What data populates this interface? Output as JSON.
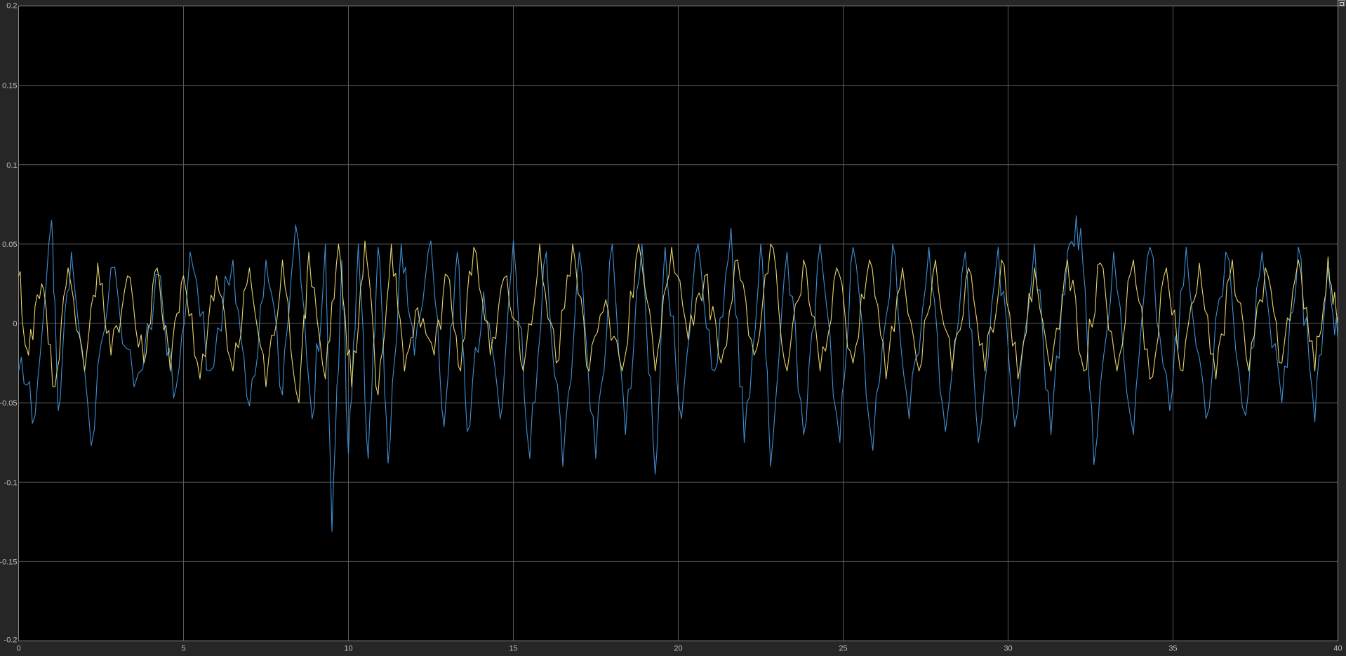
{
  "chart_data": {
    "type": "line",
    "title": "",
    "xlabel": "",
    "ylabel": "",
    "xlim": [
      0,
      40
    ],
    "ylim": [
      -0.2,
      0.2
    ],
    "x_ticks": [
      "0",
      "5",
      "10",
      "15",
      "20",
      "25",
      "30",
      "35",
      "40"
    ],
    "y_ticks": [
      "0.2",
      "0.15",
      "0.1",
      "0.05",
      "0",
      "-0.05",
      "-0.1",
      "-0.15",
      "-0.2"
    ],
    "grid": true,
    "background": "#000000",
    "series": [
      {
        "color": "#3e8fd4",
        "x": [
          0,
          0.5,
          1.0,
          1.2,
          1.6,
          2.2,
          2.8,
          3.5,
          4.3,
          4.7,
          5.2,
          5.8,
          6.5,
          7.0,
          7.5,
          8.0,
          8.4,
          8.9,
          9.3,
          9.5,
          9.8,
          10.0,
          10.3,
          10.6,
          10.9,
          11.2,
          11.6,
          12.0,
          12.5,
          12.9,
          13.3,
          13.6,
          14.1,
          14.6,
          15.0,
          15.5,
          16.0,
          16.5,
          17.0,
          17.5,
          18.0,
          18.4,
          18.9,
          19.3,
          19.6,
          20.1,
          20.6,
          21.1,
          21.6,
          22.0,
          22.5,
          22.8,
          23.3,
          23.8,
          24.3,
          24.9,
          25.3,
          25.9,
          26.5,
          27.0,
          27.6,
          28.1,
          28.7,
          29.1,
          29.7,
          30.2,
          30.8,
          31.3,
          31.8,
          32.2,
          32.6,
          33.2,
          33.8,
          34.3,
          34.9,
          35.4,
          36.0,
          36.6,
          37.2,
          37.7,
          38.3,
          38.8,
          39.3,
          39.7,
          40.0
        ],
        "y": [
          -0.03,
          -0.058,
          0.065,
          -0.055,
          0.045,
          -0.077,
          0.035,
          -0.04,
          0.03,
          -0.047,
          0.045,
          -0.03,
          0.04,
          -0.052,
          0.04,
          -0.045,
          0.062,
          -0.06,
          0.05,
          -0.131,
          0.04,
          -0.082,
          0.05,
          -0.085,
          0.048,
          -0.088,
          0.05,
          -0.02,
          0.052,
          -0.065,
          0.045,
          -0.068,
          0.02,
          -0.06,
          0.052,
          -0.085,
          0.045,
          -0.09,
          0.045,
          -0.085,
          0.05,
          -0.07,
          0.05,
          -0.095,
          0.048,
          -0.06,
          0.05,
          -0.03,
          0.06,
          -0.075,
          0.05,
          -0.09,
          0.045,
          -0.07,
          0.05,
          -0.075,
          0.048,
          -0.08,
          0.05,
          -0.06,
          0.048,
          -0.068,
          0.045,
          -0.075,
          0.048,
          -0.065,
          0.05,
          -0.07,
          0.045,
          0.06,
          -0.089,
          0.045,
          -0.07,
          0.048,
          -0.055,
          0.048,
          -0.06,
          0.045,
          -0.058,
          0.045,
          -0.05,
          0.048,
          -0.062,
          0.035,
          -0.01
        ]
      },
      {
        "color": "#e8d36a",
        "x": [
          0,
          0.3,
          0.7,
          1.1,
          1.5,
          2.0,
          2.4,
          2.8,
          3.3,
          3.8,
          4.2,
          4.6,
          5.0,
          5.5,
          6.0,
          6.5,
          7.0,
          7.5,
          8.0,
          8.5,
          8.8,
          9.3,
          9.7,
          10.1,
          10.5,
          10.9,
          11.3,
          11.7,
          12.1,
          12.6,
          13.0,
          13.4,
          13.8,
          14.3,
          14.8,
          15.3,
          15.8,
          16.3,
          16.8,
          17.3,
          17.8,
          18.3,
          18.8,
          19.3,
          19.8,
          20.3,
          20.8,
          21.3,
          21.8,
          22.3,
          22.8,
          23.3,
          23.8,
          24.3,
          24.8,
          25.3,
          25.8,
          26.3,
          26.8,
          27.3,
          27.8,
          28.3,
          28.8,
          29.3,
          29.8,
          30.3,
          30.8,
          31.3,
          31.8,
          32.3,
          32.8,
          33.3,
          33.8,
          34.3,
          34.8,
          35.3,
          35.8,
          36.3,
          36.8,
          37.3,
          37.8,
          38.3,
          38.8,
          39.3,
          39.7,
          40.0
        ],
        "y": [
          0.03,
          -0.02,
          0.025,
          -0.04,
          0.035,
          -0.03,
          0.038,
          -0.02,
          0.03,
          -0.025,
          0.035,
          -0.03,
          0.03,
          -0.035,
          0.03,
          -0.03,
          0.035,
          -0.04,
          0.04,
          -0.05,
          0.045,
          -0.035,
          0.05,
          -0.04,
          0.052,
          -0.045,
          0.05,
          -0.03,
          0.01,
          -0.02,
          0.03,
          -0.03,
          0.048,
          -0.02,
          0.03,
          -0.03,
          0.05,
          -0.025,
          0.05,
          -0.03,
          0.015,
          -0.03,
          0.05,
          -0.03,
          0.048,
          -0.01,
          0.03,
          -0.025,
          0.04,
          -0.02,
          0.05,
          -0.03,
          0.04,
          -0.03,
          0.035,
          -0.025,
          0.04,
          -0.035,
          0.035,
          -0.03,
          0.04,
          -0.03,
          0.035,
          -0.03,
          0.04,
          -0.035,
          0.035,
          -0.03,
          0.04,
          -0.03,
          0.038,
          -0.03,
          0.04,
          -0.035,
          0.035,
          -0.03,
          0.038,
          -0.035,
          0.04,
          -0.03,
          0.035,
          -0.025,
          0.04,
          -0.03,
          0.042,
          0.0
        ]
      }
    ]
  }
}
